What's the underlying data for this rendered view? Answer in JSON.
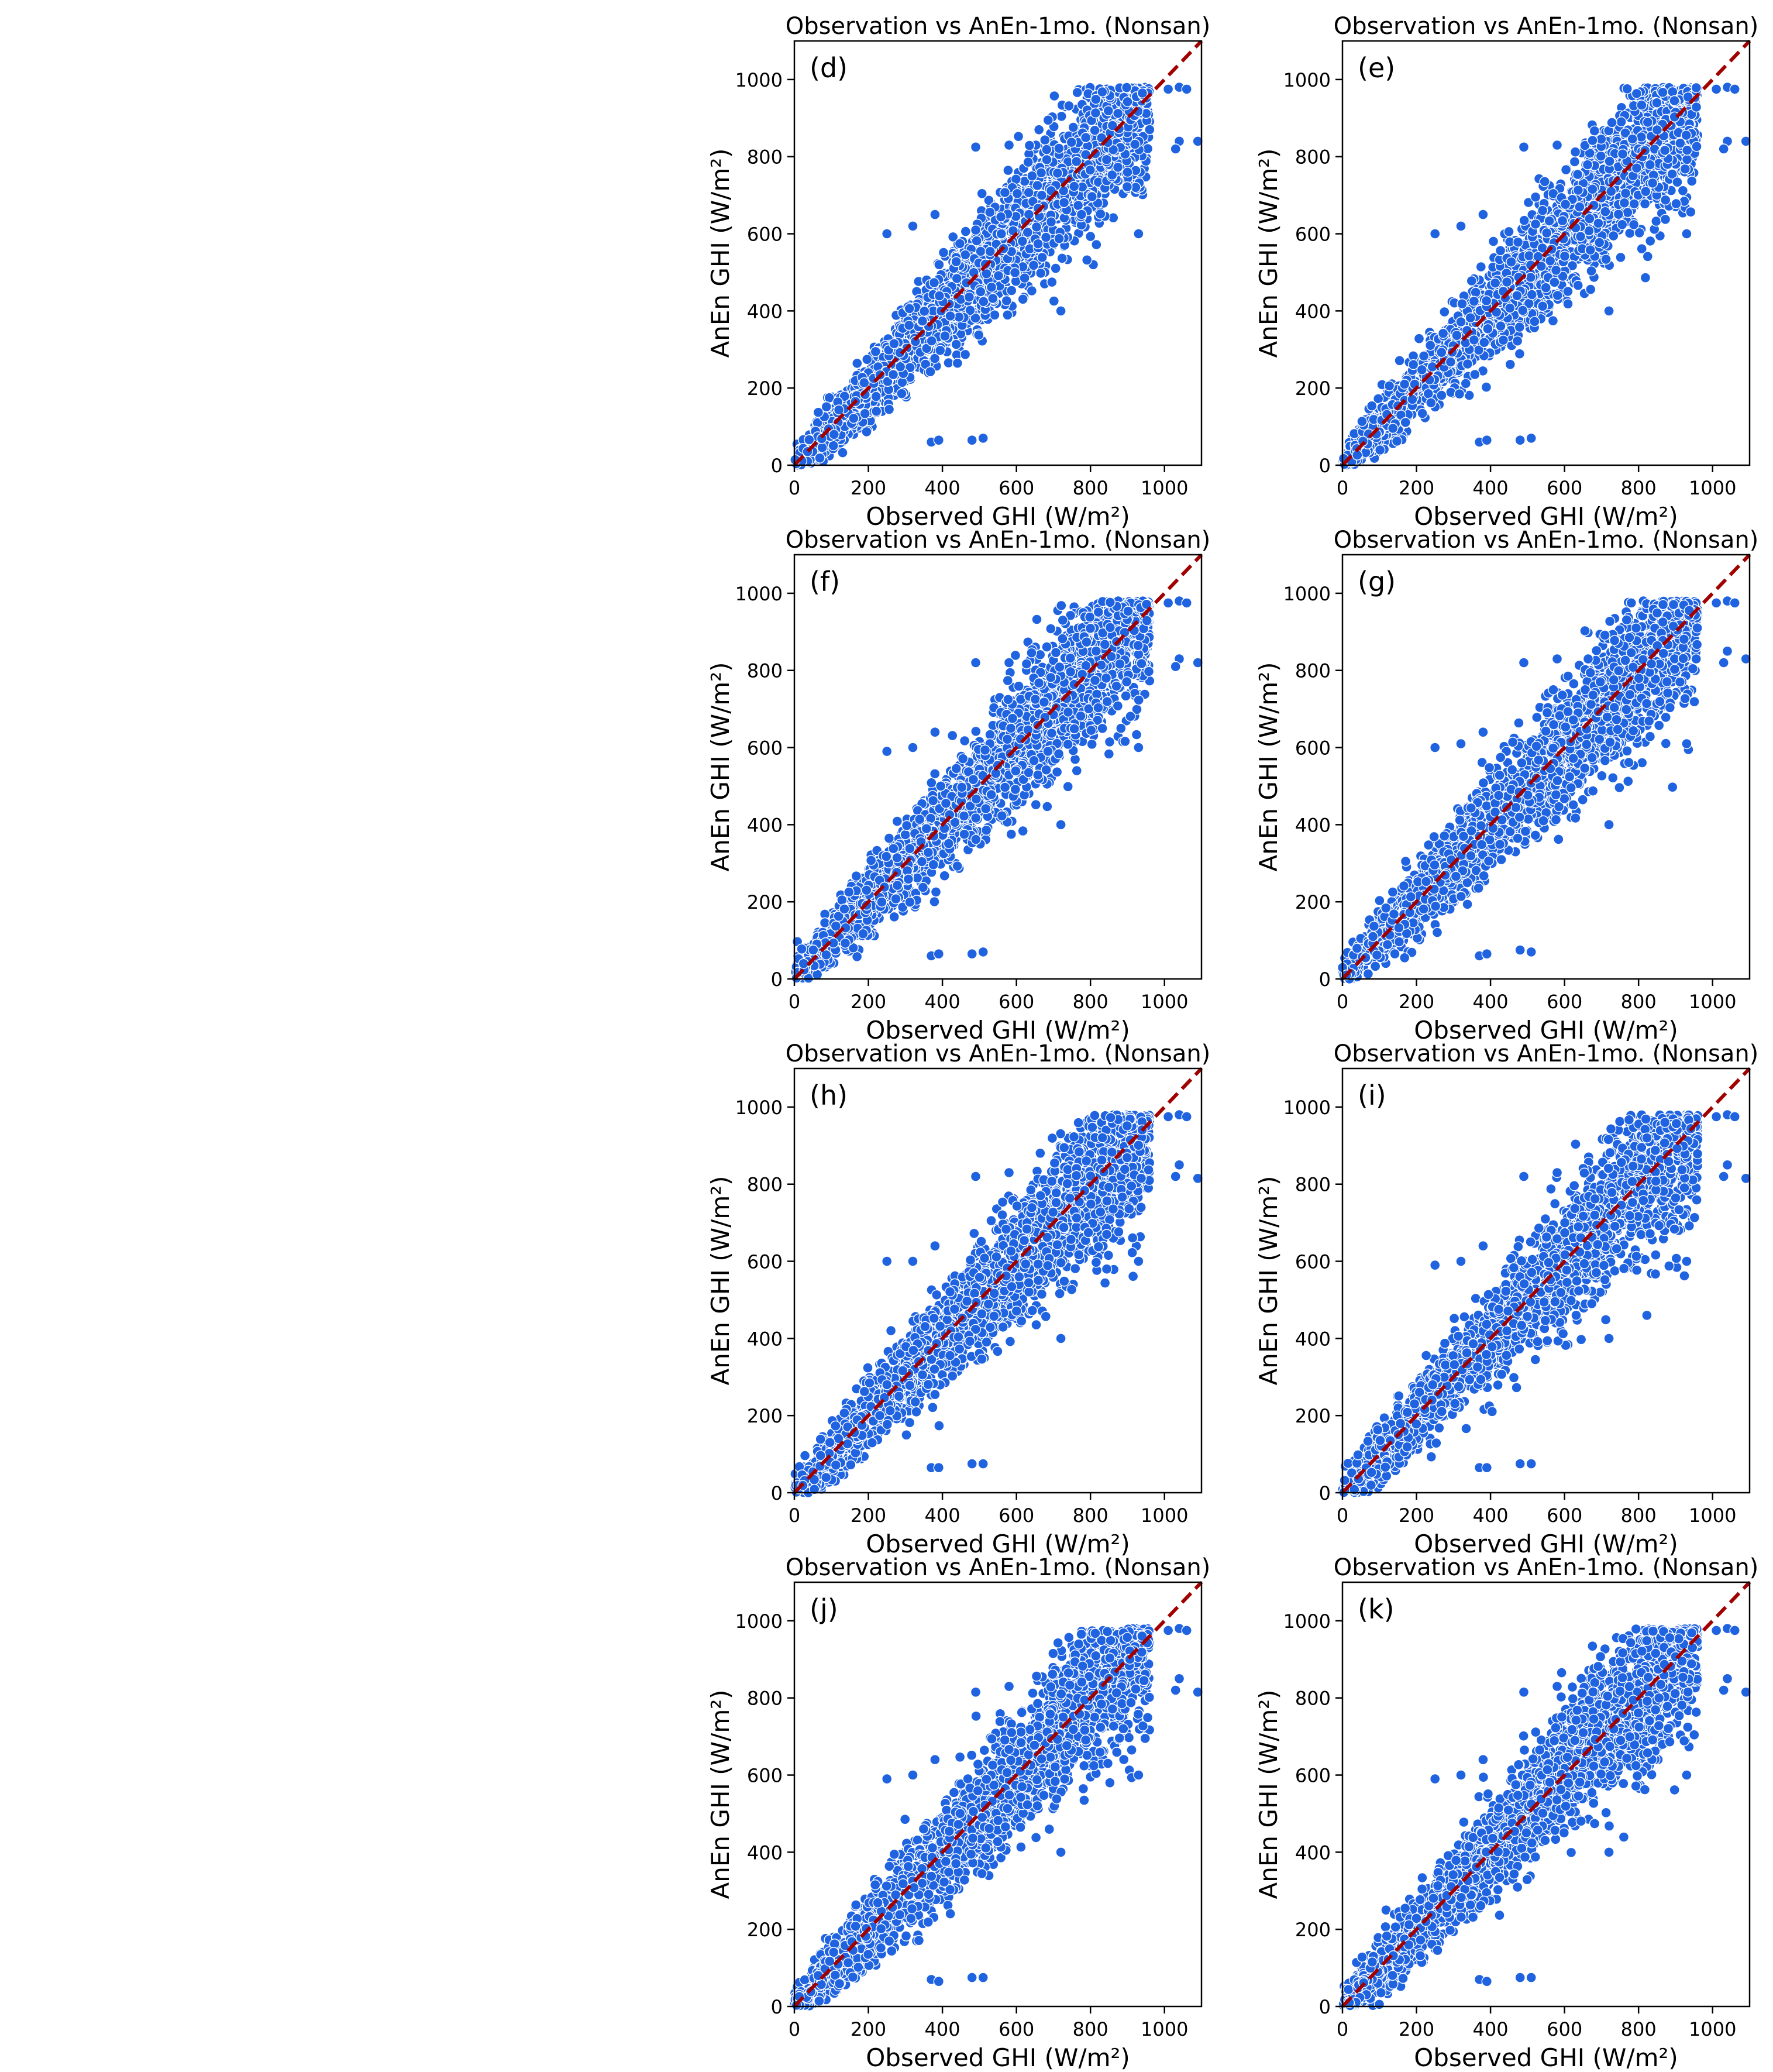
{
  "figure": {
    "panel_title": "Observation vs AnEn-1mo. (Nonsan)",
    "xlabel": "Observed GHI (W/m²)",
    "ylabel": "AnEn GHI (W/m²)"
  },
  "colors": {
    "points": "#1f63e0",
    "point_edge": "#ffffff",
    "reference_line": "#a00000"
  },
  "chart_data": [
    {
      "type": "scatter",
      "label": "(d)",
      "title": "Observation vs AnEn-1mo. (Nonsan)",
      "xlabel": "Observed GHI (W/m²)",
      "ylabel": "AnEn GHI (W/m²)",
      "xlim": [
        0,
        1100
      ],
      "ylim": [
        0,
        1100
      ],
      "xticks": [
        0,
        200,
        400,
        600,
        800,
        1000
      ],
      "yticks": [
        0,
        200,
        400,
        600,
        800,
        1000
      ],
      "reference_line": "y = x",
      "grid": false,
      "notable_points": [
        [
          1010,
          975
        ],
        [
          1040,
          980
        ],
        [
          1060,
          975
        ],
        [
          1040,
          840
        ],
        [
          1090,
          840
        ],
        [
          1030,
          820
        ],
        [
          370,
          60
        ],
        [
          390,
          65
        ],
        [
          480,
          65
        ],
        [
          510,
          70
        ],
        [
          490,
          825
        ],
        [
          580,
          830
        ],
        [
          320,
          620
        ],
        [
          380,
          650
        ],
        [
          250,
          600
        ],
        [
          930,
          600
        ],
        [
          720,
          400
        ]
      ]
    },
    {
      "type": "scatter",
      "label": "(e)",
      "title": "Observation vs AnEn-1mo. (Nonsan)",
      "xlabel": "Observed GHI (W/m²)",
      "ylabel": "AnEn GHI (W/m²)",
      "xlim": [
        0,
        1100
      ],
      "ylim": [
        0,
        1100
      ],
      "xticks": [
        0,
        200,
        400,
        600,
        800,
        1000
      ],
      "yticks": [
        0,
        200,
        400,
        600,
        800,
        1000
      ],
      "reference_line": "y = x",
      "grid": false,
      "notable_points": [
        [
          1010,
          975
        ],
        [
          1040,
          980
        ],
        [
          1060,
          975
        ],
        [
          1040,
          840
        ],
        [
          1090,
          840
        ],
        [
          1030,
          820
        ],
        [
          370,
          60
        ],
        [
          390,
          65
        ],
        [
          480,
          65
        ],
        [
          510,
          70
        ],
        [
          490,
          825
        ],
        [
          580,
          830
        ],
        [
          320,
          620
        ],
        [
          380,
          650
        ],
        [
          250,
          600
        ],
        [
          930,
          600
        ],
        [
          720,
          400
        ]
      ]
    },
    {
      "type": "scatter",
      "label": "(f)",
      "title": "Observation vs AnEn-1mo. (Nonsan)",
      "xlabel": "Observed GHI (W/m²)",
      "ylabel": "AnEn GHI (W/m²)",
      "xlim": [
        0,
        1100
      ],
      "ylim": [
        0,
        1100
      ],
      "xticks": [
        0,
        200,
        400,
        600,
        800,
        1000
      ],
      "yticks": [
        0,
        200,
        400,
        600,
        800,
        1000
      ],
      "reference_line": "y = x",
      "grid": false,
      "notable_points": [
        [
          1010,
          975
        ],
        [
          1040,
          980
        ],
        [
          1060,
          975
        ],
        [
          1040,
          830
        ],
        [
          1090,
          820
        ],
        [
          1030,
          810
        ],
        [
          370,
          60
        ],
        [
          390,
          65
        ],
        [
          480,
          65
        ],
        [
          510,
          70
        ],
        [
          490,
          820
        ],
        [
          580,
          820
        ],
        [
          320,
          600
        ],
        [
          380,
          640
        ],
        [
          250,
          590
        ],
        [
          930,
          600
        ],
        [
          720,
          400
        ]
      ]
    },
    {
      "type": "scatter",
      "label": "(g)",
      "title": "Observation vs AnEn-1mo. (Nonsan)",
      "xlabel": "Observed GHI (W/m²)",
      "ylabel": "AnEn GHI (W/m²)",
      "xlim": [
        0,
        1100
      ],
      "ylim": [
        0,
        1100
      ],
      "xticks": [
        0,
        200,
        400,
        600,
        800,
        1000
      ],
      "yticks": [
        0,
        200,
        400,
        600,
        800,
        1000
      ],
      "reference_line": "y = x",
      "grid": false,
      "notable_points": [
        [
          1010,
          975
        ],
        [
          1040,
          980
        ],
        [
          1060,
          975
        ],
        [
          1040,
          850
        ],
        [
          1090,
          830
        ],
        [
          1030,
          820
        ],
        [
          370,
          60
        ],
        [
          390,
          65
        ],
        [
          480,
          75
        ],
        [
          510,
          70
        ],
        [
          490,
          820
        ],
        [
          580,
          830
        ],
        [
          320,
          610
        ],
        [
          380,
          640
        ],
        [
          250,
          600
        ],
        [
          930,
          610
        ],
        [
          720,
          400
        ]
      ]
    },
    {
      "type": "scatter",
      "label": "(h)",
      "title": "Observation vs AnEn-1mo. (Nonsan)",
      "xlabel": "Observed GHI (W/m²)",
      "ylabel": "AnEn GHI (W/m²)",
      "xlim": [
        0,
        1100
      ],
      "ylim": [
        0,
        1100
      ],
      "xticks": [
        0,
        200,
        400,
        600,
        800,
        1000
      ],
      "yticks": [
        0,
        200,
        400,
        600,
        800,
        1000
      ],
      "reference_line": "y = x",
      "grid": false,
      "notable_points": [
        [
          1010,
          975
        ],
        [
          1040,
          980
        ],
        [
          1060,
          975
        ],
        [
          1040,
          850
        ],
        [
          1090,
          815
        ],
        [
          1030,
          820
        ],
        [
          370,
          65
        ],
        [
          390,
          65
        ],
        [
          480,
          75
        ],
        [
          510,
          75
        ],
        [
          490,
          820
        ],
        [
          580,
          830
        ],
        [
          320,
          600
        ],
        [
          380,
          640
        ],
        [
          250,
          600
        ],
        [
          930,
          600
        ],
        [
          720,
          400
        ]
      ]
    },
    {
      "type": "scatter",
      "label": "(i)",
      "title": "Observation vs AnEn-1mo. (Nonsan)",
      "xlabel": "Observed GHI (W/m²)",
      "ylabel": "AnEn GHI (W/m²)",
      "xlim": [
        0,
        1100
      ],
      "ylim": [
        0,
        1100
      ],
      "xticks": [
        0,
        200,
        400,
        600,
        800,
        1000
      ],
      "yticks": [
        0,
        200,
        400,
        600,
        800,
        1000
      ],
      "reference_line": "y = x",
      "grid": false,
      "notable_points": [
        [
          1010,
          975
        ],
        [
          1040,
          980
        ],
        [
          1060,
          975
        ],
        [
          1040,
          850
        ],
        [
          1090,
          815
        ],
        [
          1030,
          820
        ],
        [
          370,
          65
        ],
        [
          390,
          65
        ],
        [
          480,
          75
        ],
        [
          510,
          75
        ],
        [
          490,
          820
        ],
        [
          580,
          830
        ],
        [
          320,
          600
        ],
        [
          380,
          640
        ],
        [
          250,
          590
        ],
        [
          930,
          600
        ],
        [
          720,
          400
        ]
      ]
    },
    {
      "type": "scatter",
      "label": "(j)",
      "title": "Observation vs AnEn-1mo. (Nonsan)",
      "xlabel": "Observed GHI (W/m²)",
      "ylabel": "AnEn GHI (W/m²)",
      "xlim": [
        0,
        1100
      ],
      "ylim": [
        0,
        1100
      ],
      "xticks": [
        0,
        200,
        400,
        600,
        800,
        1000
      ],
      "yticks": [
        0,
        200,
        400,
        600,
        800,
        1000
      ],
      "reference_line": "y = x",
      "grid": false,
      "notable_points": [
        [
          1010,
          975
        ],
        [
          1040,
          980
        ],
        [
          1060,
          975
        ],
        [
          1040,
          850
        ],
        [
          1090,
          815
        ],
        [
          1030,
          820
        ],
        [
          370,
          70
        ],
        [
          390,
          65
        ],
        [
          480,
          75
        ],
        [
          510,
          75
        ],
        [
          490,
          815
        ],
        [
          580,
          830
        ],
        [
          320,
          600
        ],
        [
          380,
          640
        ],
        [
          250,
          590
        ],
        [
          930,
          600
        ],
        [
          720,
          400
        ]
      ]
    },
    {
      "type": "scatter",
      "label": "(k)",
      "title": "Observation vs AnEn-1mo. (Nonsan)",
      "xlabel": "Observed GHI (W/m²)",
      "ylabel": "AnEn GHI (W/m²)",
      "xlim": [
        0,
        1100
      ],
      "ylim": [
        0,
        1100
      ],
      "xticks": [
        0,
        200,
        400,
        600,
        800,
        1000
      ],
      "yticks": [
        0,
        200,
        400,
        600,
        800,
        1000
      ],
      "reference_line": "y = x",
      "grid": false,
      "notable_points": [
        [
          1010,
          975
        ],
        [
          1040,
          980
        ],
        [
          1060,
          975
        ],
        [
          1040,
          850
        ],
        [
          1090,
          815
        ],
        [
          1030,
          820
        ],
        [
          370,
          70
        ],
        [
          390,
          65
        ],
        [
          480,
          75
        ],
        [
          510,
          75
        ],
        [
          490,
          815
        ],
        [
          580,
          830
        ],
        [
          320,
          600
        ],
        [
          380,
          640
        ],
        [
          250,
          590
        ],
        [
          930,
          600
        ],
        [
          720,
          400
        ]
      ]
    }
  ]
}
